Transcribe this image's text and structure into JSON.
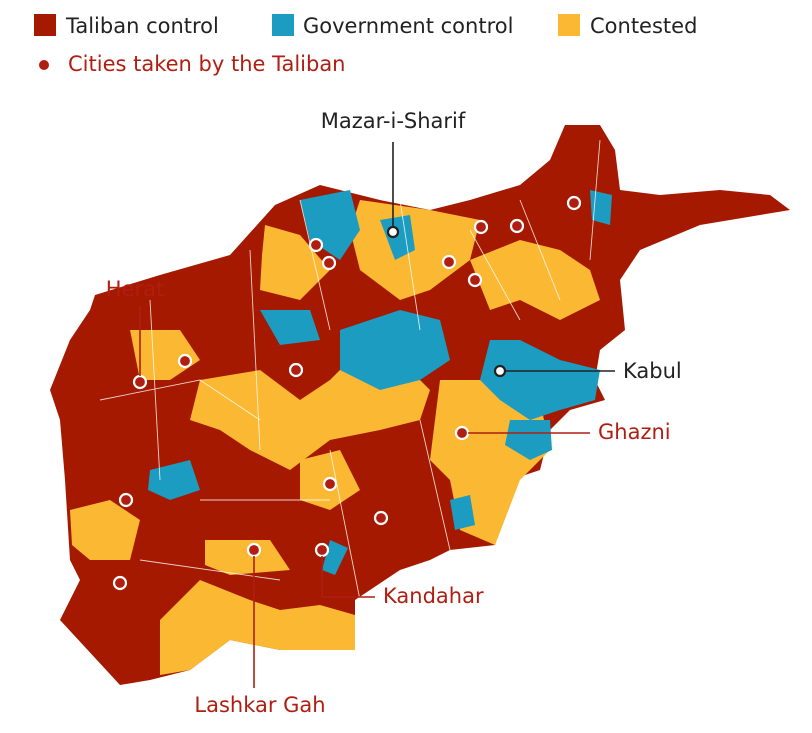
{
  "legend": {
    "items": [
      {
        "label": "Taliban control",
        "color": "#a51900"
      },
      {
        "label": "Government control",
        "color": "#1b9cc0"
      },
      {
        "label": "Contested",
        "color": "#fbb832"
      }
    ],
    "cities_marker": "Cities taken by the Taliban"
  },
  "labels": [
    "Mazar-i-Sharif",
    "Herat",
    "Kabul",
    "Ghazni",
    "Kandahar",
    "Lashkar Gah"
  ]
}
